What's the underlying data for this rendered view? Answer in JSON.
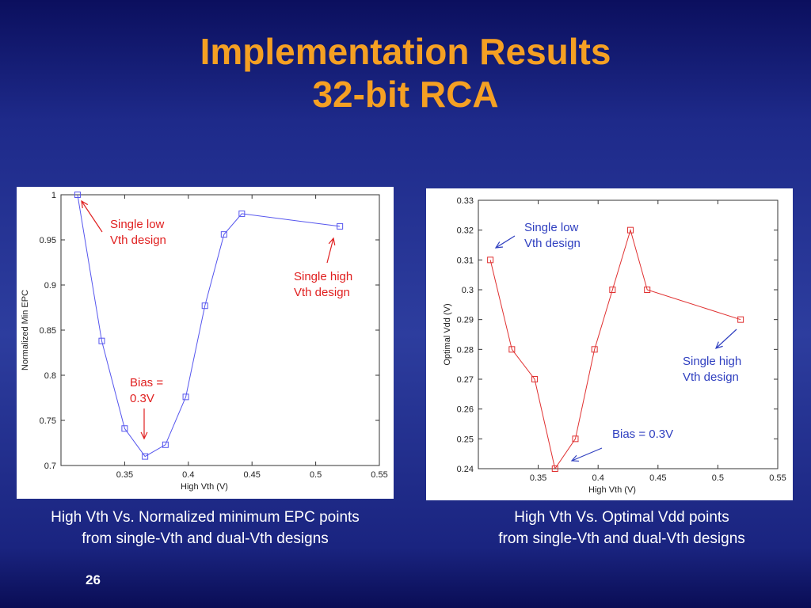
{
  "slide": {
    "title_line1": "Implementation Results",
    "title_line2": "32-bit RCA",
    "page_number": "26",
    "colors": {
      "title": "#f5a023",
      "background": "#2d3d9e"
    }
  },
  "captions": {
    "left_line1": "High Vth Vs. Normalized minimum EPC points",
    "left_line2": "from single-Vth and dual-Vth designs",
    "right_line1": "High Vth Vs. Optimal Vdd points",
    "right_line2": "from single-Vth and dual-Vth designs"
  },
  "chart_data": [
    {
      "type": "line",
      "xlabel": "High Vth (V)",
      "ylabel": "Normalized Min EPC",
      "xlim": [
        0.3,
        0.55
      ],
      "ylim": [
        0.7,
        1.0
      ],
      "xticks": [
        "0.35",
        "0.4",
        "0.45",
        "0.5",
        "0.55"
      ],
      "yticks": [
        "0.7",
        "0.75",
        "0.8",
        "0.85",
        "0.9",
        "0.95",
        "1"
      ],
      "grid": false,
      "color": "#5555ee",
      "x": [
        0.313,
        0.332,
        0.35,
        0.366,
        0.382,
        0.398,
        0.413,
        0.428,
        0.442,
        0.519
      ],
      "y": [
        1.0,
        0.838,
        0.741,
        0.71,
        0.723,
        0.776,
        0.877,
        0.956,
        0.979,
        0.965
      ],
      "annotations": [
        {
          "line1": "Single low",
          "line2": "Vth design",
          "color": "#e02020"
        },
        {
          "line1": "Single high",
          "line2": "Vth design",
          "color": "#e02020"
        },
        {
          "line1": "Bias =",
          "line2": "0.3V",
          "color": "#e02020"
        }
      ]
    },
    {
      "type": "line",
      "xlabel": "High Vth (V)",
      "ylabel": "Optimal Vdd (V)",
      "xlim": [
        0.3,
        0.55
      ],
      "ylim": [
        0.24,
        0.33
      ],
      "xticks": [
        "0.35",
        "0.4",
        "0.45",
        "0.5",
        "0.55"
      ],
      "yticks": [
        "0.24",
        "0.25",
        "0.26",
        "0.27",
        "0.28",
        "0.29",
        "0.3",
        "0.31",
        "0.32",
        "0.33"
      ],
      "grid": false,
      "color": "#e03030",
      "x": [
        0.31,
        0.328,
        0.347,
        0.364,
        0.381,
        0.397,
        0.412,
        0.427,
        0.441,
        0.519
      ],
      "y": [
        0.31,
        0.28,
        0.27,
        0.24,
        0.25,
        0.28,
        0.3,
        0.32,
        0.3,
        0.29
      ],
      "annotations": [
        {
          "line1": "Single low",
          "line2": "Vth design",
          "color": "#3040c0"
        },
        {
          "line1": "Single high",
          "line2": "Vth design",
          "color": "#3040c0"
        },
        {
          "line1": "Bias = 0.3V",
          "line2": "",
          "color": "#3040c0"
        }
      ]
    }
  ]
}
